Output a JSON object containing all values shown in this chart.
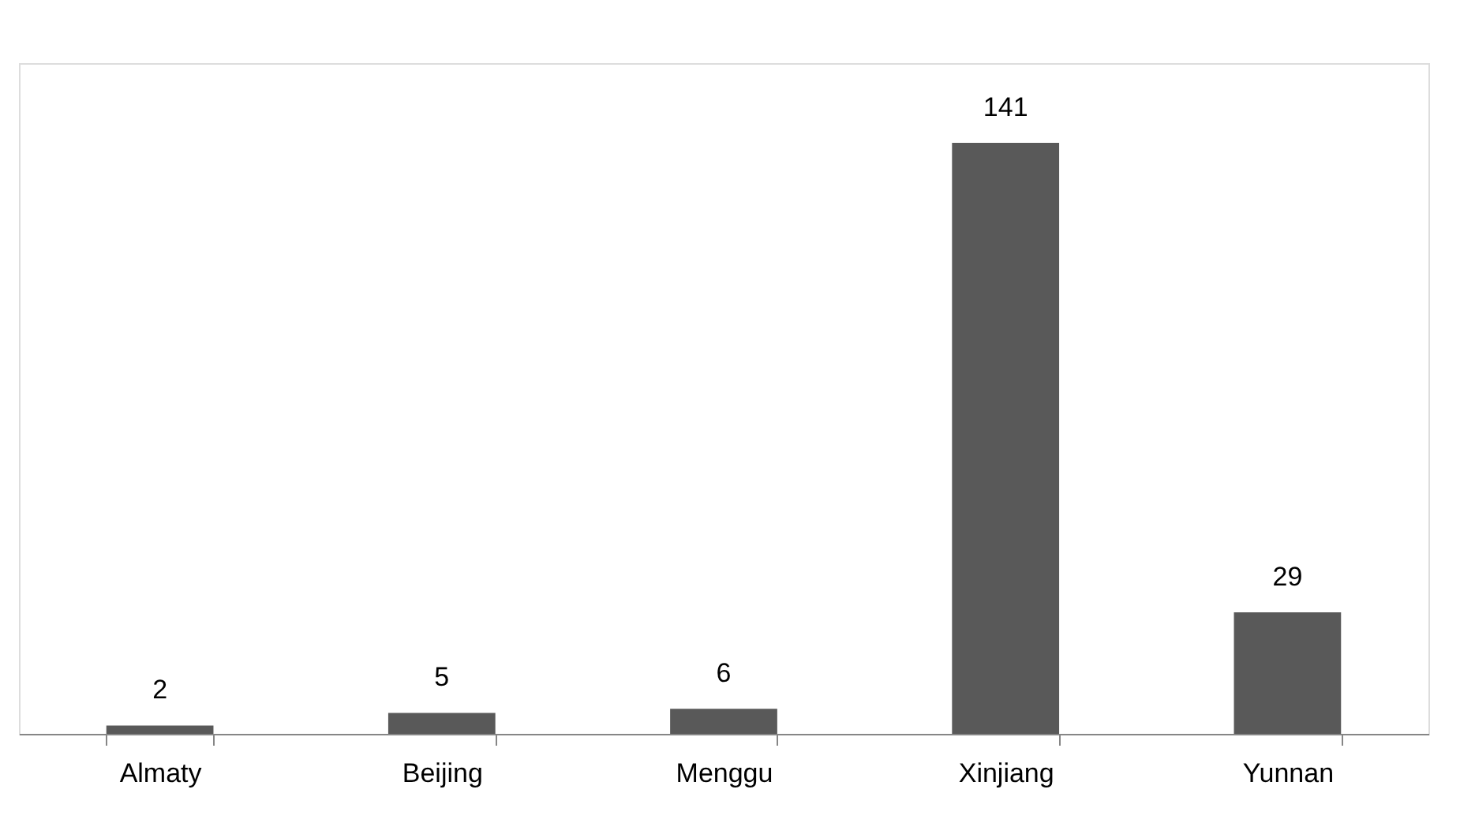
{
  "chart_data": {
    "type": "bar",
    "categories": [
      "Almaty",
      "Beijing",
      "Menggu",
      "Xinjiang",
      "Yunnan"
    ],
    "values": [
      2,
      5,
      6,
      141,
      29
    ],
    "color": "#595959",
    "data_labels": true,
    "grid": false
  }
}
